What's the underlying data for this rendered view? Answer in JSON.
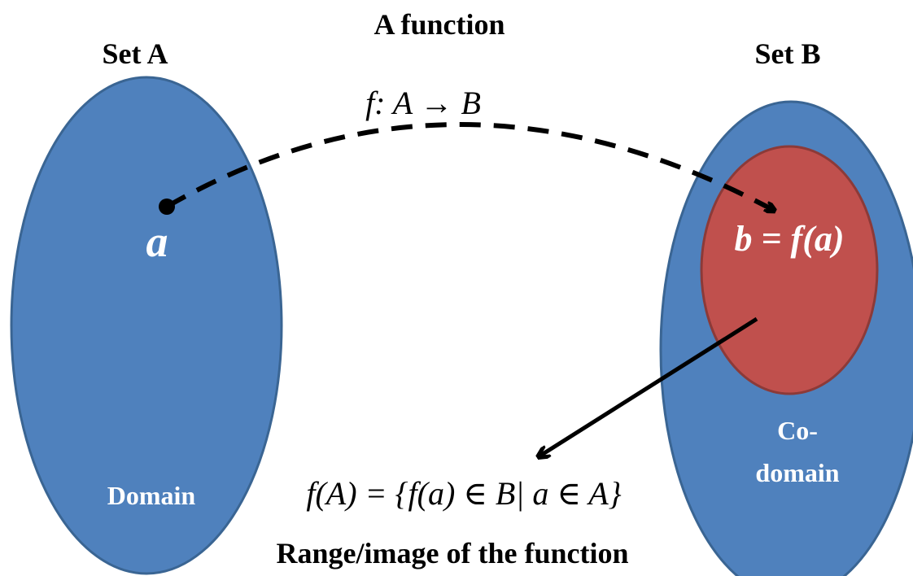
{
  "diagram": {
    "title": "A function",
    "mapping": "f: A → B",
    "set_a": {
      "title": "Set A",
      "element": "a",
      "region_label": "Domain"
    },
    "set_b": {
      "title": "Set B",
      "element": "b = f(a)",
      "region_label_line1": "Co-",
      "region_label_line2": "domain"
    },
    "image_formula": "f(A) = {f(a) ∈ B| a ∈ A}",
    "caption": "Range/image of the function"
  },
  "colors": {
    "set_fill": "#4f81bd",
    "set_stroke": "#3a6593",
    "range_fill": "#c0504d",
    "range_stroke": "#8c3a38",
    "arrow": "#000000",
    "white_text": "#ffffff",
    "dark_text": "#000000"
  }
}
